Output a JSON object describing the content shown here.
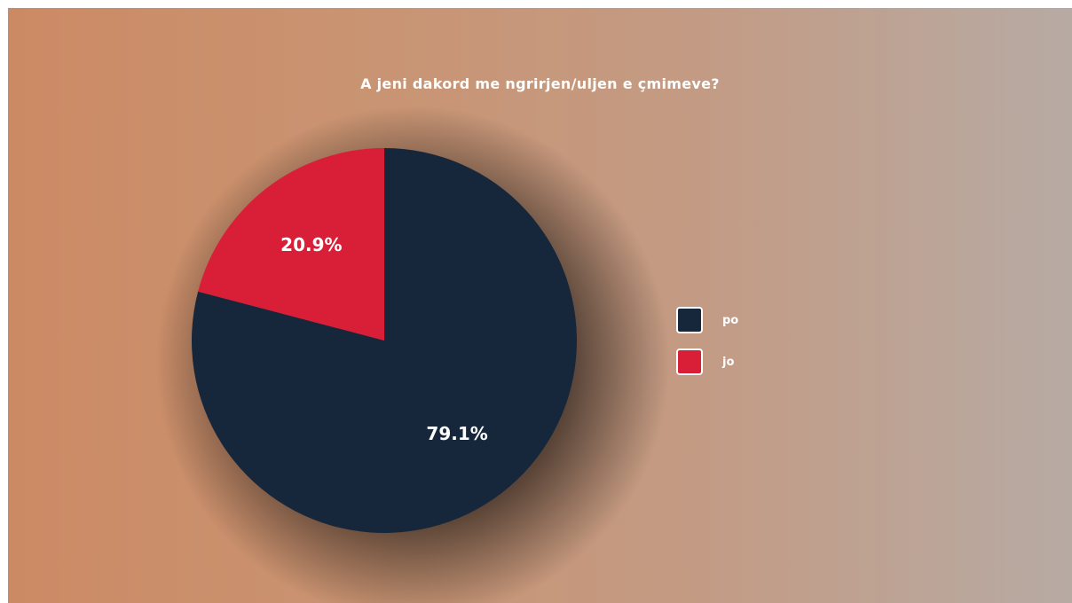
{
  "chart_data": {
    "type": "pie",
    "title": "A jeni dakord me ngrirjen/uljen e çmimeve?",
    "slices": [
      {
        "name": "po",
        "value": 79.1,
        "label": "79.1%",
        "color": "#17273b"
      },
      {
        "name": "jo",
        "value": 20.9,
        "label": "20.9%",
        "color": "#d91e37"
      }
    ],
    "legend": "right"
  }
}
